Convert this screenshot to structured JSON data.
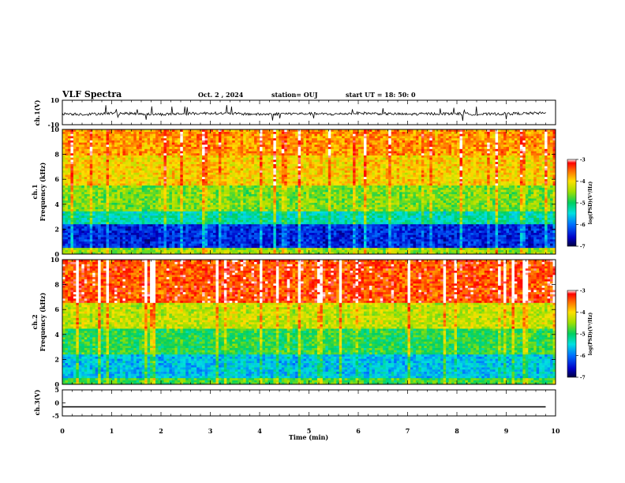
{
  "header": {
    "title": "VLF Spectra",
    "date": "Oct. 2 , 2024",
    "station": "station= OUJ",
    "start": "start  UT =   18: 50: 0"
  },
  "chart_data": [
    {
      "type": "line",
      "panel": "ch1-waveform",
      "ylabel": "ch.1(V)",
      "ylim": [
        -10,
        10
      ],
      "ytick_labels": [
        "10",
        "-10"
      ],
      "x": [
        0,
        0.5,
        1,
        1.5,
        2,
        2.5,
        3,
        3.5,
        4,
        4.5,
        5,
        5.5,
        6,
        6.5,
        7,
        7.5,
        8,
        8.5,
        9,
        9.8
      ],
      "values": [
        -1,
        -1.5,
        -0.5,
        -1,
        -1.5,
        -1,
        -0.5,
        -1,
        -1.5,
        -1,
        -1,
        -1.5,
        -0.5,
        -1,
        -1.5,
        -1,
        -1,
        -1.5,
        -1,
        -0.5
      ]
    },
    {
      "type": "heatmap",
      "panel": "ch1-spectrogram",
      "channel_label": "ch.1",
      "ylabel": "Frequency (kHz)",
      "ylim": [
        0,
        10
      ],
      "yticks": [
        0,
        2,
        4,
        6,
        8,
        10
      ],
      "colorbar": {
        "label": "log(PSD)(V²/Hz)",
        "range": [
          -7,
          -3
        ],
        "tick_labels": [
          "-3",
          "-4",
          "-5",
          "-6",
          "-7"
        ]
      },
      "bands": [
        {
          "from": 0,
          "to": 0.5,
          "level": -4.5
        },
        {
          "from": 0.5,
          "to": 2.5,
          "level": -6.4
        },
        {
          "from": 2.5,
          "to": 3.5,
          "level": -5.3
        },
        {
          "from": 3.5,
          "to": 5.5,
          "level": -4.6
        },
        {
          "from": 5.5,
          "to": 8,
          "level": -4.0
        },
        {
          "from": 8,
          "to": 10,
          "level": -3.7
        }
      ]
    },
    {
      "type": "heatmap",
      "panel": "ch2-spectrogram",
      "channel_label": "ch.2",
      "ylabel": "Frequency (kHz)",
      "ylim": [
        0,
        10
      ],
      "yticks": [
        0,
        2,
        4,
        6,
        8,
        10
      ],
      "colorbar": {
        "label": "log(PSD)(V²/Hz)",
        "range": [
          -7,
          -3
        ],
        "tick_labels": [
          "-3",
          "-4",
          "-5",
          "-6",
          "-7"
        ]
      },
      "bands": [
        {
          "from": 0,
          "to": 0.5,
          "level": -4.8
        },
        {
          "from": 0.5,
          "to": 2.5,
          "level": -5.6
        },
        {
          "from": 2.5,
          "to": 4.5,
          "level": -4.9
        },
        {
          "from": 4.5,
          "to": 6.5,
          "level": -4.3
        },
        {
          "from": 6.5,
          "to": 10,
          "level": -3.4
        }
      ]
    },
    {
      "type": "line",
      "panel": "ch3-waveform",
      "ylabel": "ch.3(V)",
      "ylim": [
        -5,
        5
      ],
      "ytick_labels": [
        "5",
        "0",
        "-5"
      ],
      "x": [
        0,
        9.8
      ],
      "values": [
        -1.5,
        -1.5
      ]
    }
  ],
  "x_axis": {
    "label": "Time (min)",
    "range": [
      0,
      10
    ],
    "tick_labels": [
      "0",
      "1",
      "2",
      "3",
      "4",
      "5",
      "6",
      "7",
      "8",
      "9",
      "10"
    ]
  }
}
